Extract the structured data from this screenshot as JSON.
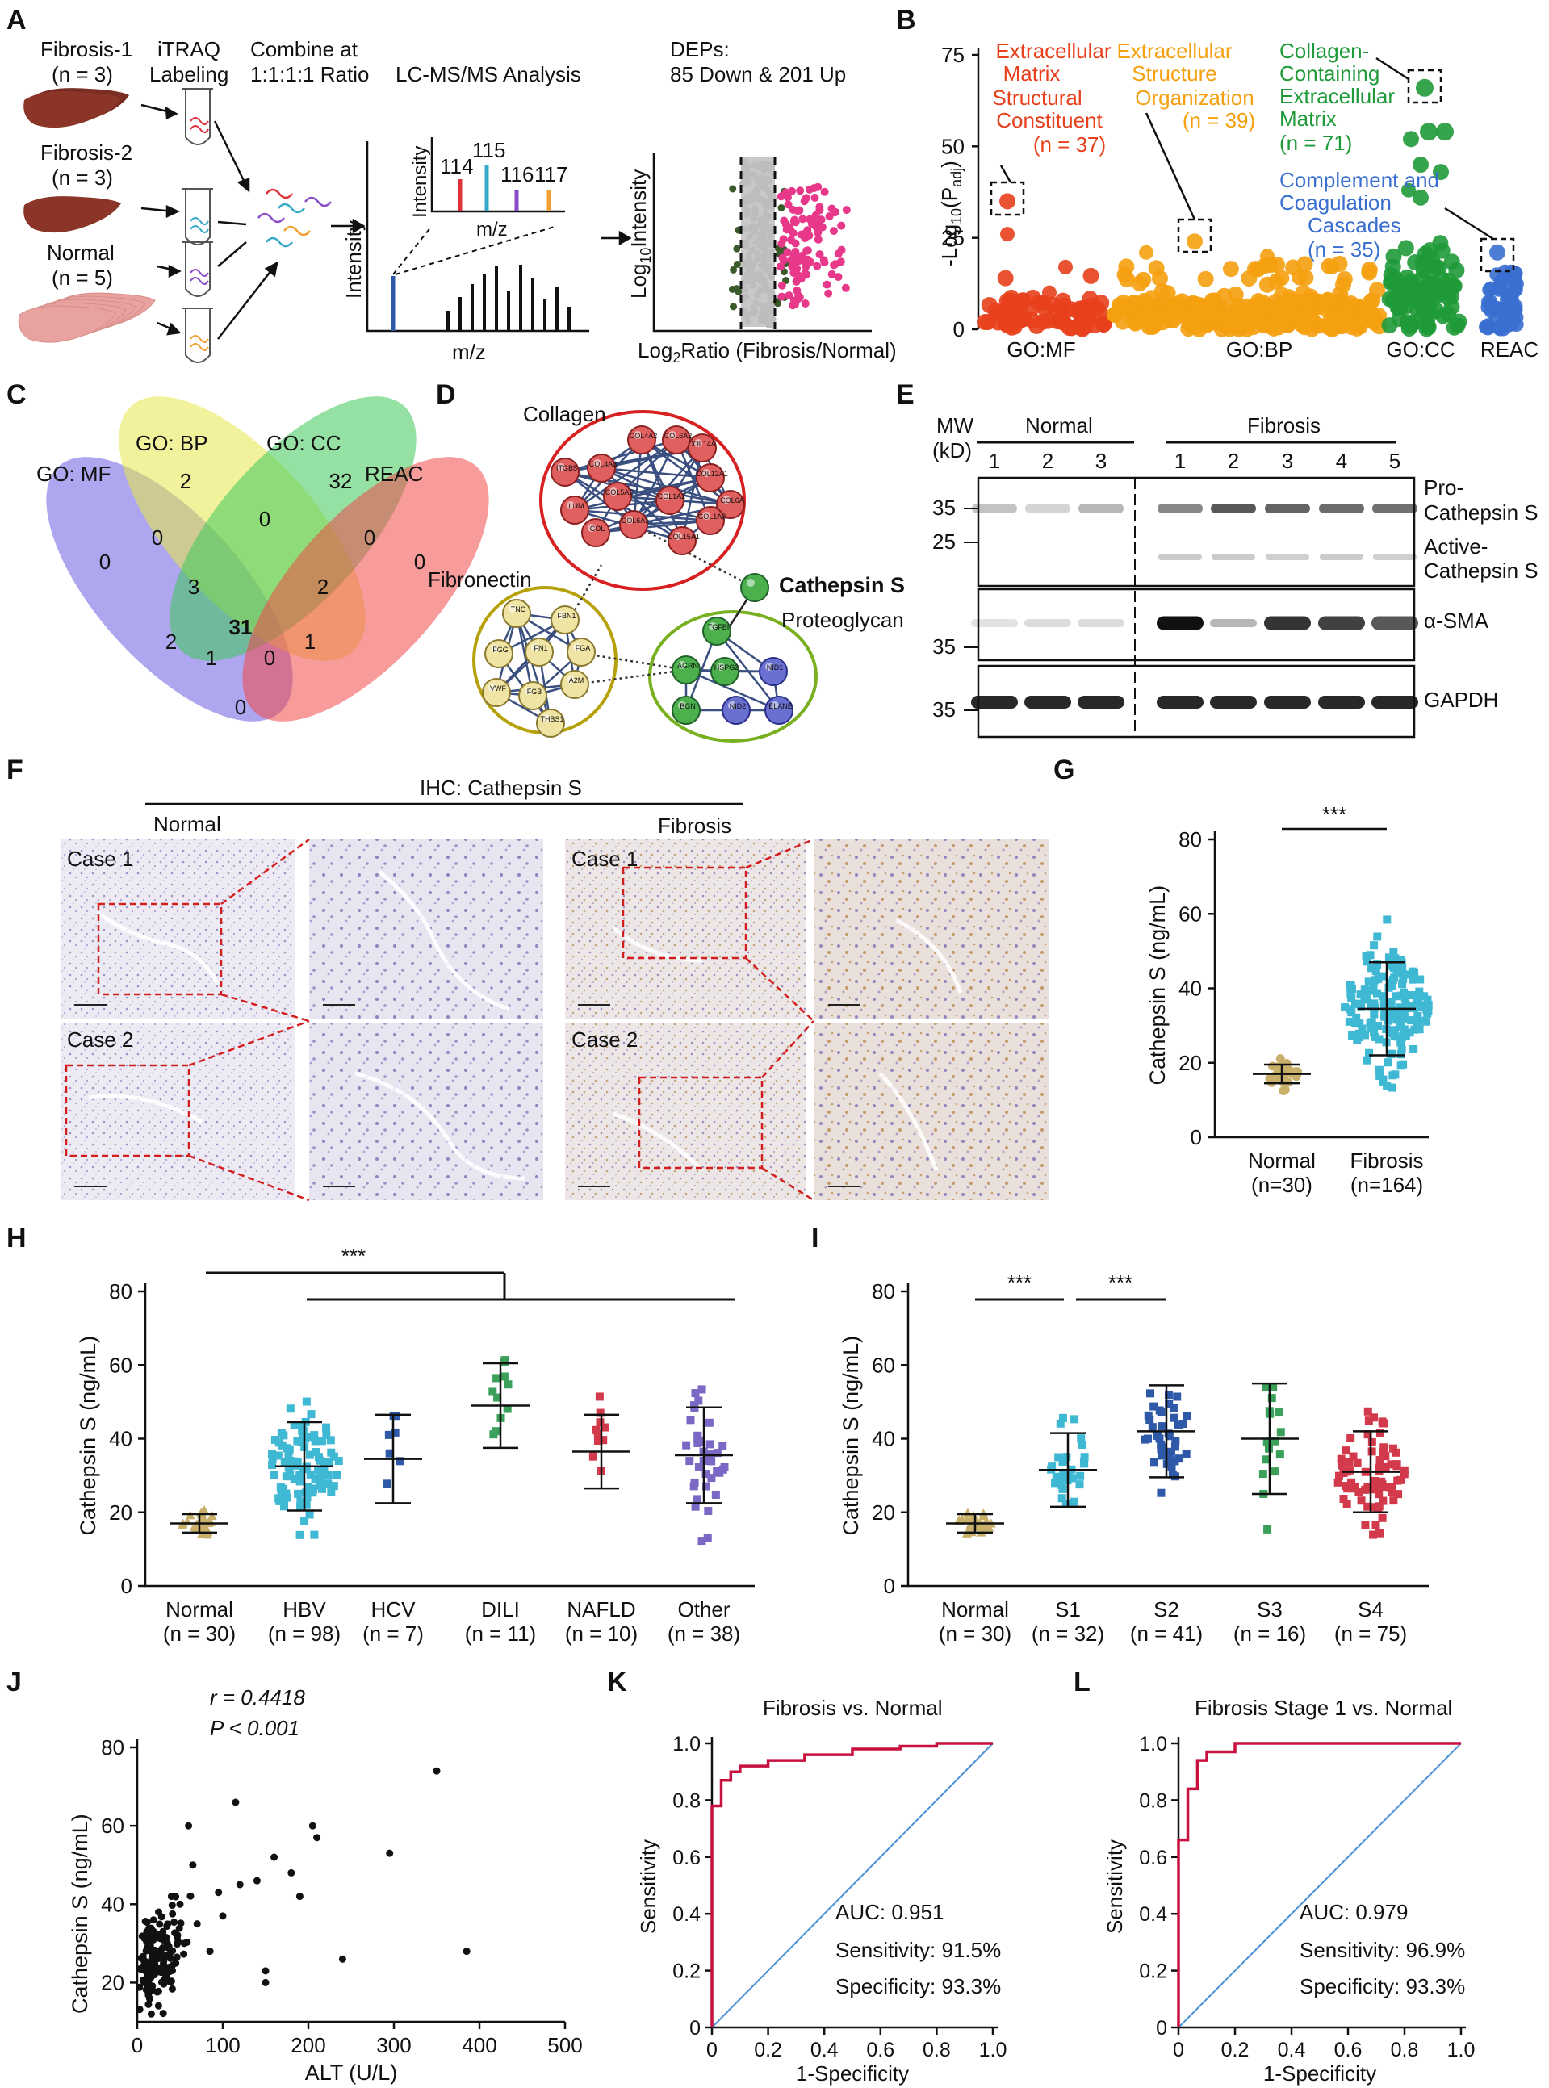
{
  "colors": {
    "mf": "#e8401c",
    "bp": "#f5a00f",
    "cc": "#1f9a38",
    "reac": "#3a6fd0",
    "gold": "#c9b06a",
    "cyan": "#3fb8d4",
    "navy": "#2e59a8",
    "green": "#3aa05a",
    "red": "#d23a4b",
    "purple": "#7a68c4",
    "roc": "#c8103e",
    "diag": "#4a90d9",
    "pink": "#e8388a"
  },
  "panelA": {
    "label": "A",
    "fib1": "Fibrosis-1",
    "fib1n": "(n = 3)",
    "fib2": "Fibrosis-2",
    "fib2n": "(n = 3)",
    "norm": "Normal",
    "normn": "(n = 5)",
    "itraq1": "iTRAQ",
    "itraq2": "Labeling",
    "combine1": "Combine at",
    "combine2": "1:1:1:1 Ratio",
    "lcms": "LC-MS/MS Analysis",
    "deps1": "DEPs:",
    "deps2": "85 Down & 201 Up",
    "intensity": "Intensity",
    "mz": "m/z",
    "tags": [
      "114",
      "115",
      "116",
      "117"
    ],
    "ylab": "Log10Intensity",
    "xlab": "Log2Ratio (Fibrosis/Normal)"
  },
  "panelB": {
    "label": "B",
    "ylabel": "-Log10(Padj)",
    "yticks": [
      "75",
      "50",
      "25",
      "0"
    ],
    "groups": [
      "GO:MF",
      "GO:BP",
      "GO:CC",
      "REAC"
    ],
    "ann_mf": [
      "Extracellular",
      "Matrix",
      "Structural",
      "Constituent",
      "(n = 37)"
    ],
    "ann_bp": [
      "Extracellular",
      "Structure",
      "Organization",
      "(n = 39)"
    ],
    "ann_cc": [
      "Collagen-",
      "Containing",
      "Extracellular",
      "Matrix",
      "(n = 71)"
    ],
    "ann_reac": [
      "Complement and",
      "Coagulation",
      "Cascades",
      "(n = 35)"
    ]
  },
  "panelC": {
    "label": "C",
    "sets": [
      "GO: MF",
      "GO: BP",
      "GO: CC",
      "REAC"
    ],
    "counts": {
      "mf_only": "0",
      "bp_only": "2",
      "cc_only": "32",
      "reac_only": "0",
      "mf_bp": "0",
      "bp_cc": "0",
      "cc_reac": "0",
      "mf_bp_cc": "3",
      "bp_cc_reac": "2",
      "mf_cc": "2",
      "bp_reac": "1",
      "all": "31",
      "mf_cc_reac": "1",
      "mf_bp_reac": "0",
      "mf_reac": "0"
    }
  },
  "panelD": {
    "label": "D",
    "collagen": "Collagen",
    "fibronectin": "Fibronectin",
    "proteoglycan": "Proteoglycan",
    "cathepsin": "Cathepsin S",
    "collagen_nodes": [
      "COL4A2",
      "COL6A2",
      "COL14A1",
      "ITGB5",
      "COL12A1",
      "COL4A3",
      "COL6A",
      "LUM",
      "COL5A2",
      "COL1A2",
      "COL1A3",
      "COL6A1",
      "COL",
      "COL15A1"
    ],
    "fib_nodes": [
      "TNC",
      "FBN1",
      "FGG",
      "FN1",
      "FGA",
      "VWF",
      "FGB",
      "A2M",
      "THBS1"
    ],
    "pg_nodes": [
      "TGFBI",
      "AGRN",
      "HSPG2",
      "NID1",
      "BGN",
      "NID2",
      "ELANE"
    ]
  },
  "panelE": {
    "label": "E",
    "mw": "MW",
    "kd": "(kD)",
    "normal": "Normal",
    "fibrosis": "Fibrosis",
    "lanes": [
      "1",
      "2",
      "3",
      "1",
      "2",
      "3",
      "4",
      "5"
    ],
    "markers": [
      "35",
      "25",
      "35",
      "35"
    ],
    "bands": [
      "Pro-",
      "Cathepsin S",
      "Active-",
      "Cathepsin S",
      "α-SMA",
      "GAPDH"
    ]
  },
  "panelF": {
    "label": "F",
    "title": "IHC: Cathepsin S",
    "normal": "Normal",
    "fibrosis": "Fibrosis",
    "case1": "Case 1",
    "case2": "Case 2"
  },
  "panelG": {
    "label": "G",
    "ylabel": "Cathepsin S (ng/mL)",
    "yticks": [
      "80",
      "60",
      "40",
      "20",
      "0"
    ],
    "sig": "***",
    "groups": [
      "Normal",
      "Fibrosis"
    ],
    "ns": [
      "(n=30)",
      "(n=164)"
    ]
  },
  "panelH": {
    "label": "H",
    "ylabel": "Cathepsin S (ng/mL)",
    "yticks": [
      "80",
      "60",
      "40",
      "20",
      "0"
    ],
    "sig": "***",
    "groups": [
      "Normal",
      "HBV",
      "HCV",
      "DILI",
      "NAFLD",
      "Other"
    ],
    "ns": [
      "(n = 30)",
      "(n = 98)",
      "(n = 7)",
      "(n = 11)",
      "(n = 10)",
      "(n = 38)"
    ]
  },
  "panelI": {
    "label": "I",
    "ylabel": "Cathepsin S (ng/mL)",
    "yticks": [
      "80",
      "60",
      "40",
      "20",
      "0"
    ],
    "sig1": "***",
    "sig2": "***",
    "groups": [
      "Normal",
      "S1",
      "S2",
      "S3",
      "S4"
    ],
    "ns": [
      "(n = 30)",
      "(n = 32)",
      "(n = 41)",
      "(n = 16)",
      "(n = 75)"
    ]
  },
  "panelJ": {
    "label": "J",
    "r": "r = 0.4418",
    "p": "P < 0.001",
    "ylabel": "Cathepsin S (ng/mL)",
    "xlabel": "ALT (U/L)",
    "xticks": [
      "0",
      "100",
      "200",
      "300",
      "400",
      "500"
    ],
    "yticks": [
      "80",
      "60",
      "40",
      "20"
    ]
  },
  "panelK": {
    "label": "K",
    "title": "Fibrosis vs. Normal",
    "auc": "AUC: 0.951",
    "sens": "Sensitivity: 91.5%",
    "spec": "Specificity: 93.3%",
    "ylabel": "Sensitivity",
    "xlabel": "1-Specificity"
  },
  "panelL": {
    "label": "L",
    "title": "Fibrosis Stage 1 vs. Normal",
    "auc": "AUC: 0.979",
    "sens": "Sensitivity: 96.9%",
    "spec": "Specificity: 93.3%",
    "ylabel": "Sensitivity",
    "xlabel": "1-Specificity"
  },
  "rocTicks": [
    "0",
    "0.2",
    "0.4",
    "0.6",
    "0.8",
    "1.0"
  ],
  "chart_data": [
    {
      "type": "scatter",
      "title": "Panel G",
      "ylabel": "Cathepsin S (ng/mL)",
      "ylim": [
        0,
        80
      ],
      "categories": [
        "Normal",
        "Fibrosis"
      ],
      "summary": [
        {
          "name": "Normal",
          "mean": 17,
          "sd": 2.5,
          "n": 30
        },
        {
          "name": "Fibrosis",
          "mean": 34.5,
          "sd": 12.5,
          "n": 164
        }
      ]
    },
    {
      "type": "scatter",
      "title": "Panel H",
      "ylabel": "Cathepsin S (ng/mL)",
      "ylim": [
        0,
        80
      ],
      "categories": [
        "Normal",
        "HBV",
        "HCV",
        "DILI",
        "NAFLD",
        "Other"
      ],
      "summary": [
        {
          "name": "Normal",
          "mean": 17,
          "sd": 2.5,
          "n": 30
        },
        {
          "name": "HBV",
          "mean": 32.5,
          "sd": 12,
          "n": 98
        },
        {
          "name": "HCV",
          "mean": 34.5,
          "sd": 12,
          "n": 7
        },
        {
          "name": "DILI",
          "mean": 49,
          "sd": 11.5,
          "n": 11
        },
        {
          "name": "NAFLD",
          "mean": 36.5,
          "sd": 10,
          "n": 10
        },
        {
          "name": "Other",
          "mean": 35.5,
          "sd": 13,
          "n": 38
        }
      ]
    },
    {
      "type": "scatter",
      "title": "Panel I",
      "ylabel": "Cathepsin S (ng/mL)",
      "ylim": [
        0,
        80
      ],
      "categories": [
        "Normal",
        "S1",
        "S2",
        "S3",
        "S4"
      ],
      "summary": [
        {
          "name": "Normal",
          "mean": 17,
          "sd": 2.5,
          "n": 30
        },
        {
          "name": "S1",
          "mean": 31.5,
          "sd": 10,
          "n": 32
        },
        {
          "name": "S2",
          "mean": 42,
          "sd": 12.5,
          "n": 41
        },
        {
          "name": "S3",
          "mean": 40,
          "sd": 15,
          "n": 16
        },
        {
          "name": "S4",
          "mean": 31,
          "sd": 11,
          "n": 75
        }
      ]
    },
    {
      "type": "scatter",
      "title": "Panel J",
      "xlabel": "ALT (U/L)",
      "ylabel": "Cathepsin S (ng/mL)",
      "xlim": [
        0,
        500
      ],
      "ylim": [
        10,
        80
      ],
      "x": [
        350,
        385,
        295,
        240,
        205,
        210,
        180,
        115,
        160,
        150,
        95,
        120,
        60,
        40,
        25,
        70,
        85,
        55,
        45,
        30,
        20,
        12,
        8,
        35,
        50,
        65,
        100,
        150,
        190,
        140
      ],
      "y": [
        74,
        28,
        53,
        26,
        60,
        57,
        48,
        66,
        52,
        23,
        43,
        45,
        60,
        42,
        38,
        35,
        28,
        30,
        25,
        33,
        22,
        18,
        20,
        27,
        40,
        50,
        37,
        20,
        42,
        46
      ]
    },
    {
      "type": "line",
      "title": "Fibrosis vs. Normal",
      "xlabel": "1-Specificity",
      "ylabel": "Sensitivity",
      "xlim": [
        0,
        1
      ],
      "ylim": [
        0,
        1
      ],
      "x": [
        0,
        0,
        0.033,
        0.033,
        0.067,
        0.067,
        0.1,
        0.1,
        0.2,
        0.2,
        0.33,
        0.33,
        0.5,
        0.5,
        0.67,
        0.67,
        0.8,
        0.8,
        1.0
      ],
      "y": [
        0,
        0.78,
        0.78,
        0.87,
        0.87,
        0.9,
        0.9,
        0.92,
        0.92,
        0.94,
        0.94,
        0.96,
        0.96,
        0.98,
        0.98,
        0.99,
        0.99,
        1.0,
        1.0
      ]
    },
    {
      "type": "line",
      "title": "Fibrosis Stage 1 vs. Normal",
      "xlabel": "1-Specificity",
      "ylabel": "Sensitivity",
      "xlim": [
        0,
        1
      ],
      "ylim": [
        0,
        1
      ],
      "x": [
        0,
        0,
        0.033,
        0.033,
        0.067,
        0.067,
        0.1,
        0.1,
        0.2,
        0.2,
        1.0
      ],
      "y": [
        0,
        0.66,
        0.66,
        0.84,
        0.84,
        0.94,
        0.94,
        0.97,
        0.97,
        1.0,
        1.0
      ]
    }
  ]
}
